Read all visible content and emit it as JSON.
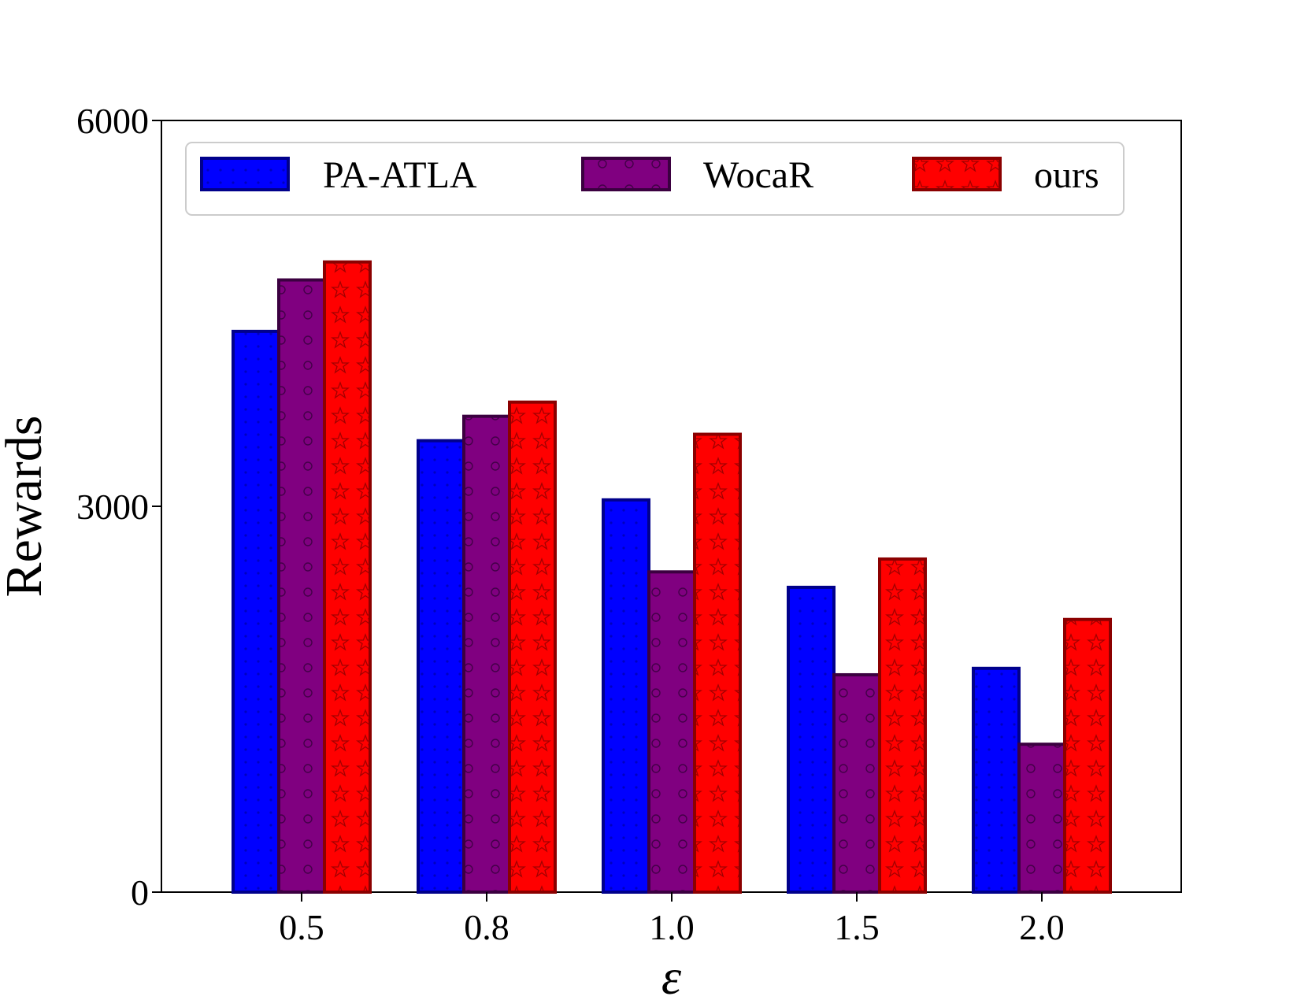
{
  "chart_data": {
    "type": "bar",
    "title": "",
    "xlabel": "ε",
    "ylabel": "Rewards",
    "categories": [
      "0.5",
      "0.8",
      "1.0",
      "1.5",
      "2.0"
    ],
    "ylim": [
      0,
      6000
    ],
    "yticks": [
      {
        "value": 0,
        "label": "0"
      },
      {
        "value": 3000,
        "label": "3000"
      },
      {
        "value": 6000,
        "label": "6000"
      }
    ],
    "grid": false,
    "legend_position": "top",
    "series": [
      {
        "name": "PA-ATLA",
        "color": "#0000ff",
        "edge_color": "#00008b",
        "pattern": "dots",
        "values": [
          4360,
          3510,
          3050,
          2370,
          1740
        ]
      },
      {
        "name": "WocaR",
        "color": "#800080",
        "edge_color": "#3b0040",
        "pattern": "circles",
        "values": [
          4760,
          3700,
          2490,
          1690,
          1150
        ]
      },
      {
        "name": "ours",
        "color": "#ff0000",
        "edge_color": "#8b0000",
        "pattern": "stars",
        "values": [
          4900,
          3810,
          3560,
          2590,
          2120
        ]
      }
    ]
  }
}
